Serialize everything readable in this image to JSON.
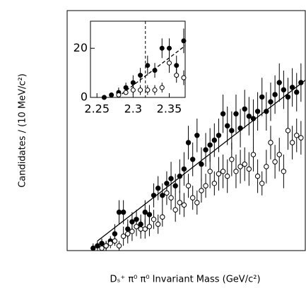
{
  "chart_data": [
    {
      "type": "scatter",
      "xlabel": "Dₛ⁺ π⁰ π⁰ Invariant Mass (GeV/c²)",
      "ylabel": "Candidates / (10 MeV/c²)",
      "xlim": [
        2.2,
        2.75
      ],
      "ylim": [
        0,
        100
      ],
      "x": [
        2.26,
        2.27,
        2.28,
        2.29,
        2.3,
        2.31,
        2.32,
        2.33,
        2.34,
        2.35,
        2.36,
        2.37,
        2.38,
        2.39,
        2.4,
        2.41,
        2.42,
        2.43,
        2.44,
        2.45,
        2.46,
        2.47,
        2.48,
        2.49,
        2.5,
        2.51,
        2.52,
        2.53,
        2.54,
        2.55,
        2.56,
        2.57,
        2.58,
        2.59,
        2.6,
        2.61,
        2.62,
        2.63,
        2.64,
        2.65,
        2.66,
        2.67,
        2.68,
        2.69,
        2.7,
        2.71,
        2.72,
        2.73,
        2.74
      ],
      "series": [
        {
          "marker": "filled",
          "color": "#000000",
          "values": [
            1,
            2,
            3,
            2,
            4,
            7,
            16,
            16,
            9,
            12,
            13,
            11,
            16,
            15,
            23,
            26,
            23,
            28,
            30,
            27,
            31,
            34,
            45,
            38,
            48,
            36,
            42,
            44,
            46,
            48,
            57,
            52,
            50,
            57,
            51,
            59,
            56,
            55,
            58,
            64,
            58,
            62,
            65,
            70,
            67,
            64,
            68,
            66,
            70
          ],
          "errors": [
            2,
            2,
            2,
            2,
            2,
            4,
            5,
            5,
            4,
            4,
            4,
            4,
            5,
            4,
            5,
            5,
            5,
            5,
            7,
            5,
            7,
            7,
            7,
            7,
            7,
            7,
            7,
            7,
            7,
            7,
            8,
            8,
            8,
            8,
            8,
            8,
            8,
            8,
            8,
            8,
            8,
            8,
            8,
            8,
            8,
            8,
            8,
            8,
            8
          ]
        },
        {
          "marker": "open",
          "color": "#000000",
          "values": [
            null,
            null,
            1,
            2,
            3,
            4,
            2,
            6,
            7,
            8,
            10,
            9,
            9,
            10,
            13,
            11,
            14,
            24,
            22,
            17,
            20,
            19,
            27,
            22,
            20,
            25,
            27,
            33,
            28,
            32,
            33,
            31,
            38,
            33,
            35,
            36,
            34,
            40,
            31,
            28,
            35,
            45,
            37,
            40,
            33,
            50,
            45,
            48,
            47
          ],
          "errors": [
            null,
            null,
            2,
            2,
            2,
            2,
            2,
            4,
            4,
            4,
            4,
            4,
            4,
            4,
            4,
            4,
            4,
            5,
            5,
            5,
            5,
            5,
            5,
            5,
            5,
            5,
            5,
            7,
            5,
            7,
            7,
            7,
            7,
            7,
            7,
            7,
            7,
            7,
            7,
            5,
            7,
            7,
            7,
            7,
            7,
            8,
            7,
            7,
            7
          ]
        }
      ],
      "fit": {
        "x": [
          2.27,
          2.75
        ],
        "y": [
          4,
          71
        ]
      }
    },
    {
      "type": "scatter",
      "xlim": [
        2.241,
        2.372
      ],
      "ylim": [
        0,
        31
      ],
      "xticks": [
        2.25,
        2.3,
        2.35
      ],
      "yticks": [
        0,
        20
      ],
      "x": [
        2.26,
        2.27,
        2.28,
        2.29,
        2.3,
        2.31,
        2.32,
        2.33,
        2.34,
        2.35,
        2.36,
        2.37
      ],
      "series": [
        {
          "marker": "filled",
          "color": "#000000",
          "values": [
            0,
            1,
            2,
            4,
            6,
            9,
            13,
            11,
            20,
            20,
            13,
            23
          ],
          "errors": [
            1,
            1,
            2,
            2,
            3,
            3,
            4,
            3,
            4,
            4,
            4,
            5
          ]
        },
        {
          "marker": "open",
          "color": "#000000",
          "values": [
            null,
            null,
            1,
            2,
            3,
            3,
            3,
            3,
            4,
            14,
            9,
            8
          ],
          "errors": [
            null,
            null,
            1,
            1,
            2,
            2,
            2,
            2,
            2,
            4,
            3,
            3
          ]
        }
      ],
      "threshold": 2.317,
      "fit": {
        "x": [
          2.278,
          2.372
        ],
        "y": [
          0,
          21
        ]
      }
    }
  ]
}
